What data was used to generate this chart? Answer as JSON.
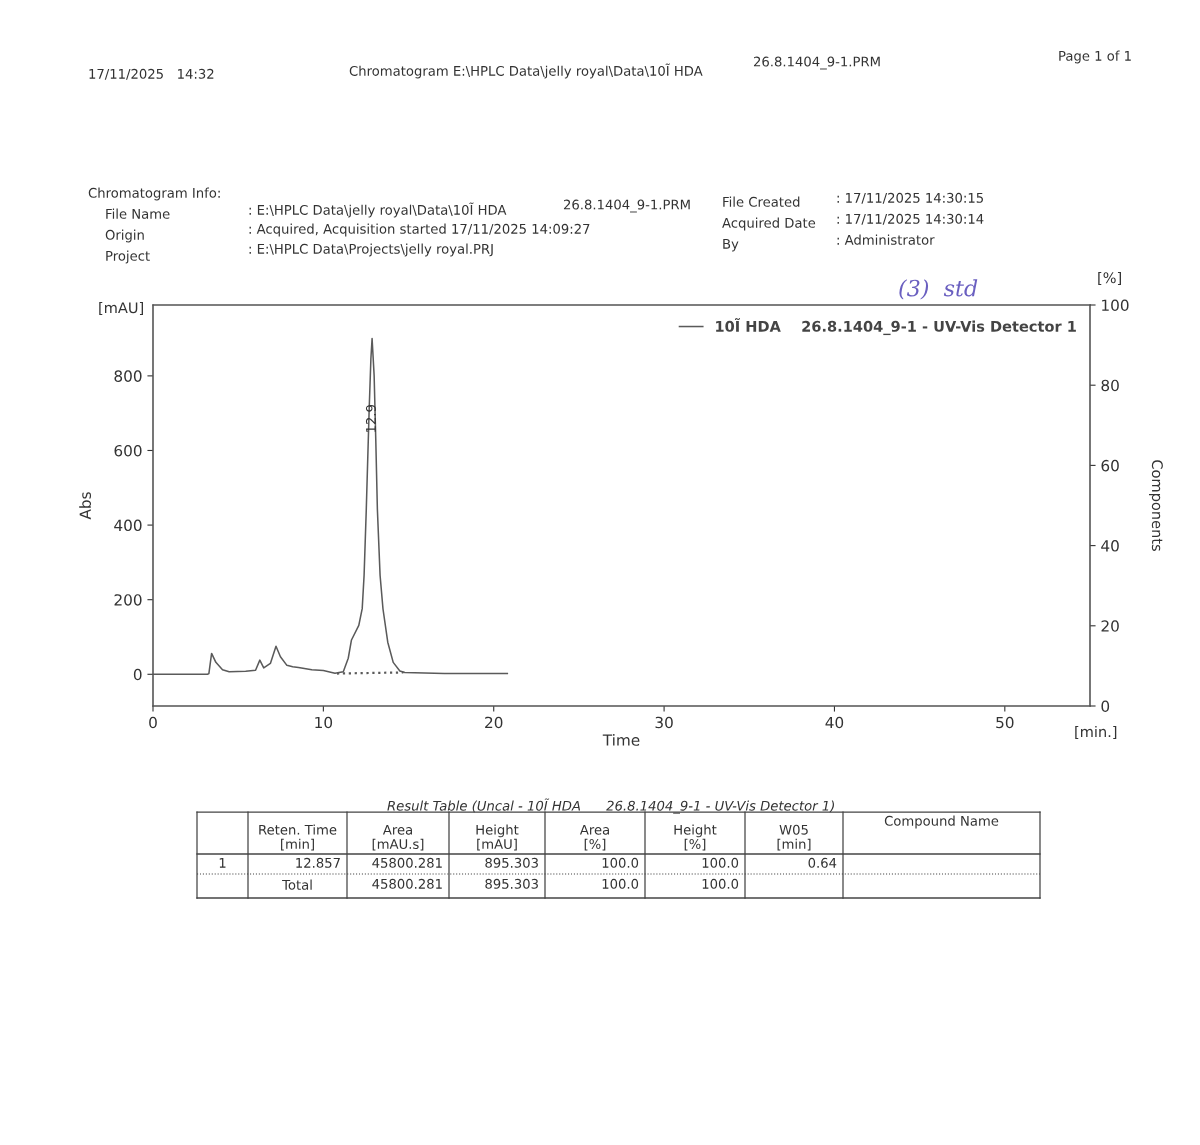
{
  "chart_data": {
    "type": "line",
    "x": [
      0,
      3.2,
      3.28,
      3.44,
      3.69,
      4.08,
      4.47,
      5.44,
      6.02,
      6.27,
      6.5,
      6.89,
      7.22,
      7.48,
      7.86,
      8.2,
      8.54,
      9.32,
      10.0,
      10.68,
      11.17,
      11.46,
      11.65,
      12.08,
      12.28,
      12.39,
      12.52,
      12.69,
      12.79,
      12.86,
      12.98,
      13.08,
      13.17,
      13.33,
      13.5,
      13.78,
      14.1,
      14.49,
      14.78,
      17.1,
      20.8
    ],
    "series": [
      {
        "name": "10Ĩ HDA    26.8.1404_9-1 - UV-Vis Detector 1",
        "color": "#5a5a5a",
        "values": [
          0,
          0,
          2,
          56,
          32,
          12,
          7,
          8,
          11,
          38,
          17,
          29,
          75,
          47,
          24,
          20,
          18,
          12,
          10,
          3,
          7,
          43,
          92,
          131,
          176,
          265,
          443,
          712,
          846,
          900,
          801,
          622,
          443,
          265,
          175,
          86,
          32,
          9,
          5,
          2,
          2
        ]
      },
      {
        "type": "line",
        "x": [
          10.8,
          14.7
        ],
        "values": [
          2,
          5
        ],
        "color": "#5a5a5a",
        "line_style": "dotted"
      }
    ],
    "xlim": [
      0,
      55
    ],
    "xticks": [
      0,
      10,
      20,
      30,
      40,
      50
    ],
    "ylim": [
      -85,
      990
    ],
    "yticks": [
      0,
      200,
      400,
      600,
      800
    ],
    "y2lim": [
      0,
      100
    ],
    "y2ticks": [
      0,
      20,
      40,
      60,
      80,
      100
    ],
    "xlabel": "Time",
    "ylabel": "Abs",
    "y2label": "Components",
    "legend": "top right",
    "grid": false,
    "line_style": "solid",
    "marker": "none",
    "annotations": [
      "17/11/2025   14:32",
      "Chromatogram E:\\HPLC Data\\jelly royal\\Data\\10Ĩ HDA",
      "26.8.1404_9-1.PRM",
      "Page 1 of 1",
      "Chromatogram Info:",
      "File Name",
      "Origin",
      "Project",
      ": E:\\HPLC Data\\jelly royal\\Data\\10Ĩ HDA",
      "26.8.1404_9-1.PRM",
      ": Acquired, Acquisition started 17/11/2025 14:09:27",
      ": E:\\HPLC Data\\Projects\\jelly royal.PRJ",
      "File Created",
      "Acquired Date",
      "By",
      ": 17/11/2025 14:30:15",
      ": 17/11/2025 14:30:14",
      ": Administrator",
      "[mAU]",
      "[%]",
      "[min.]",
      "(3)  std",
      {
        "text": "12.9",
        "x": 12.86,
        "y": 685
      },
      "Result Table (Uncal - 10Ĩ HDA      26.8.1404_9-1 - UV-Vis Detector 1)",
      "Reten. Time\n[min]",
      "Area\n[mAU.s]",
      "Height\n[mAU]",
      "Area\n[%]",
      "Height\n[%]",
      "W05\n[min]",
      "Compound Name",
      "1",
      "12.857",
      "45800.281",
      "895.303",
      "100.0",
      "100.0",
      "0.64",
      "Total",
      "45800.281",
      "895.303",
      "100.0",
      "100.0"
    ]
  }
}
